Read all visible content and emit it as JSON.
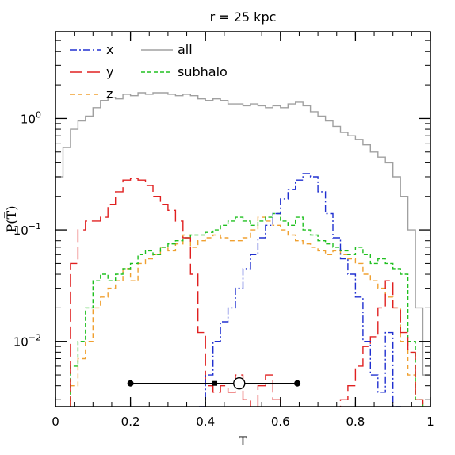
{
  "chart_data": {
    "type": "line",
    "title": "r = 25 kpc",
    "xlabel": "T̅",
    "ylabel": "P(T̅)",
    "xlim": [
      0,
      1
    ],
    "ylim": [
      0.0026,
      6.0
    ],
    "yscale": "log",
    "grid": false,
    "legend_position": "top-left",
    "x_ticks": [
      {
        "value": 0,
        "label": "0"
      },
      {
        "value": 0.2,
        "label": "0.2"
      },
      {
        "value": 0.4,
        "label": "0.4"
      },
      {
        "value": 0.6,
        "label": "0.6"
      },
      {
        "value": 0.8,
        "label": "0.8"
      },
      {
        "value": 1,
        "label": "1"
      }
    ],
    "y_ticks": [
      {
        "value": 1,
        "base": "10",
        "exp": "0"
      },
      {
        "value": 0.1,
        "base": "10",
        "exp": "−1"
      },
      {
        "value": 0.01,
        "base": "10",
        "exp": "−2"
      }
    ],
    "bin_edges": [
      0.0,
      0.02,
      0.04,
      0.06,
      0.08,
      0.1,
      0.12,
      0.14,
      0.16,
      0.18,
      0.2,
      0.22,
      0.24,
      0.26,
      0.28,
      0.3,
      0.32,
      0.34,
      0.36,
      0.38,
      0.4,
      0.42,
      0.44,
      0.46,
      0.48,
      0.5,
      0.52,
      0.54,
      0.56,
      0.58,
      0.6,
      0.62,
      0.64,
      0.66,
      0.68,
      0.7,
      0.72,
      0.74,
      0.76,
      0.78,
      0.8,
      0.82,
      0.84,
      0.86,
      0.88,
      0.9,
      0.92,
      0.94,
      0.96,
      0.98,
      1.0
    ],
    "series": [
      {
        "name": "all",
        "color": "#a0a0a0",
        "dash": "solid",
        "values": [
          0.3,
          0.55,
          0.8,
          0.95,
          1.05,
          1.25,
          1.45,
          1.55,
          1.5,
          1.65,
          1.6,
          1.7,
          1.65,
          1.7,
          1.7,
          1.65,
          1.6,
          1.65,
          1.6,
          1.5,
          1.45,
          1.5,
          1.45,
          1.35,
          1.35,
          1.3,
          1.35,
          1.3,
          1.25,
          1.3,
          1.25,
          1.35,
          1.4,
          1.3,
          1.15,
          1.05,
          0.95,
          0.85,
          0.75,
          0.7,
          0.65,
          0.58,
          0.5,
          0.45,
          0.4,
          0.3,
          0.2,
          0.1,
          0.02,
          0.005
        ]
      },
      {
        "name": "x",
        "color": "#2030d0",
        "dash": "dashdot",
        "values": [
          0,
          0,
          0,
          0,
          0,
          0,
          0,
          0,
          0,
          0,
          0,
          0,
          0,
          0,
          0,
          0,
          0,
          0,
          0,
          0.002,
          0.005,
          0.01,
          0.015,
          0.02,
          0.03,
          0.045,
          0.06,
          0.085,
          0.11,
          0.14,
          0.19,
          0.23,
          0.28,
          0.32,
          0.3,
          0.22,
          0.14,
          0.085,
          0.055,
          0.04,
          0.025,
          0.01,
          0.005,
          0.0035,
          0.012,
          0.002,
          0,
          0,
          0,
          0
        ]
      },
      {
        "name": "y",
        "color": "#e02020",
        "dash": "longdash",
        "values": [
          0,
          0,
          0.05,
          0.1,
          0.12,
          0.12,
          0.13,
          0.17,
          0.22,
          0.28,
          0.29,
          0.28,
          0.25,
          0.2,
          0.17,
          0.15,
          0.12,
          0.085,
          0.04,
          0.012,
          0.004,
          0.0035,
          0.004,
          0.0035,
          0.005,
          0.003,
          0,
          0.004,
          0.005,
          0.003,
          0,
          0,
          0,
          0,
          0,
          0,
          0,
          0,
          0.003,
          0.004,
          0.006,
          0.009,
          0.011,
          0.02,
          0.035,
          0.02,
          0.012,
          0.008,
          0.003,
          0
        ]
      },
      {
        "name": "z",
        "color": "#f0a030",
        "dash": "dashed",
        "values": [
          0,
          0,
          0.004,
          0.007,
          0.01,
          0.02,
          0.025,
          0.03,
          0.035,
          0.045,
          0.035,
          0.05,
          0.055,
          0.06,
          0.07,
          0.065,
          0.075,
          0.09,
          0.07,
          0.08,
          0.085,
          0.09,
          0.085,
          0.08,
          0.08,
          0.085,
          0.1,
          0.13,
          0.12,
          0.11,
          0.1,
          0.09,
          0.08,
          0.075,
          0.07,
          0.065,
          0.06,
          0.065,
          0.06,
          0.055,
          0.05,
          0.04,
          0.035,
          0.03,
          0.025,
          0.02,
          0.01,
          0.005,
          0.003,
          0
        ]
      },
      {
        "name": "subhalo",
        "color": "#20c020",
        "dash": "shortdash",
        "values": [
          0,
          0,
          0.006,
          0.01,
          0.02,
          0.035,
          0.04,
          0.035,
          0.04,
          0.045,
          0.05,
          0.06,
          0.065,
          0.06,
          0.07,
          0.075,
          0.08,
          0.085,
          0.09,
          0.09,
          0.095,
          0.1,
          0.11,
          0.12,
          0.13,
          0.12,
          0.11,
          0.12,
          0.13,
          0.14,
          0.12,
          0.11,
          0.13,
          0.1,
          0.09,
          0.08,
          0.075,
          0.07,
          0.065,
          0.06,
          0.07,
          0.06,
          0.05,
          0.055,
          0.05,
          0.045,
          0.04,
          0.01,
          0.003,
          0
        ]
      }
    ],
    "error_bar": {
      "y": 0.0042,
      "xmin": 0.2,
      "xmax": 0.645,
      "small_marker_x": 0.425,
      "open_marker_x": 0.49
    }
  }
}
